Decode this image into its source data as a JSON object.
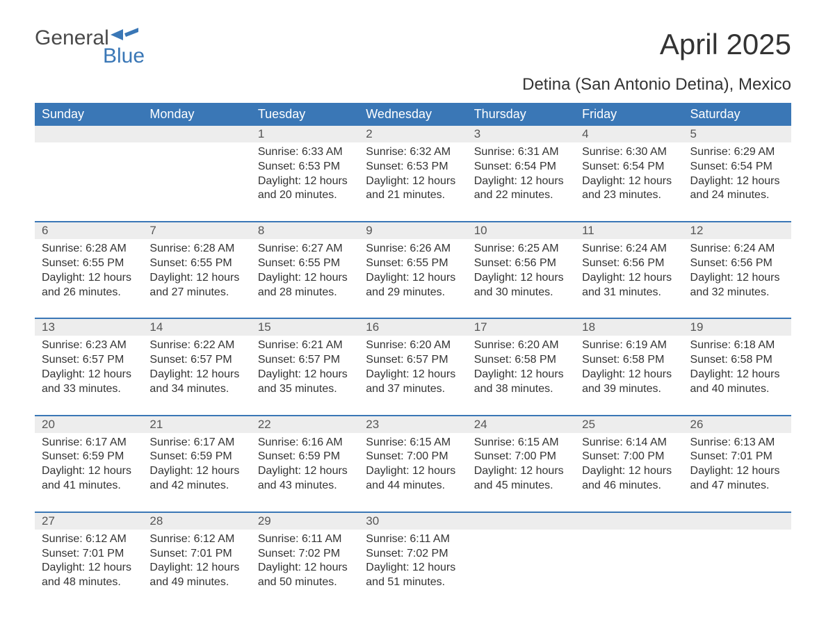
{
  "logo": {
    "word1": "General",
    "word2": "Blue"
  },
  "title": "April 2025",
  "location": "Detina (San Antonio Detina), Mexico",
  "colors": {
    "header_bg": "#3a77b6",
    "header_text": "#ffffff",
    "daynum_bg": "#ededed",
    "rule": "#3a77b6",
    "text": "#333333",
    "logo_gray": "#4a4a4a",
    "logo_blue": "#3a77b6",
    "background": "#ffffff"
  },
  "fonts": {
    "title_size_pt": 32,
    "location_size_pt": 18,
    "header_size_pt": 14,
    "body_size_pt": 12,
    "daynum_size_pt": 13
  },
  "day_headers": [
    "Sunday",
    "Monday",
    "Tuesday",
    "Wednesday",
    "Thursday",
    "Friday",
    "Saturday"
  ],
  "weeks": [
    [
      null,
      null,
      {
        "n": "1",
        "sunrise": "6:33 AM",
        "sunset": "6:53 PM",
        "daylight": "12 hours and 20 minutes."
      },
      {
        "n": "2",
        "sunrise": "6:32 AM",
        "sunset": "6:53 PM",
        "daylight": "12 hours and 21 minutes."
      },
      {
        "n": "3",
        "sunrise": "6:31 AM",
        "sunset": "6:54 PM",
        "daylight": "12 hours and 22 minutes."
      },
      {
        "n": "4",
        "sunrise": "6:30 AM",
        "sunset": "6:54 PM",
        "daylight": "12 hours and 23 minutes."
      },
      {
        "n": "5",
        "sunrise": "6:29 AM",
        "sunset": "6:54 PM",
        "daylight": "12 hours and 24 minutes."
      }
    ],
    [
      {
        "n": "6",
        "sunrise": "6:28 AM",
        "sunset": "6:55 PM",
        "daylight": "12 hours and 26 minutes."
      },
      {
        "n": "7",
        "sunrise": "6:28 AM",
        "sunset": "6:55 PM",
        "daylight": "12 hours and 27 minutes."
      },
      {
        "n": "8",
        "sunrise": "6:27 AM",
        "sunset": "6:55 PM",
        "daylight": "12 hours and 28 minutes."
      },
      {
        "n": "9",
        "sunrise": "6:26 AM",
        "sunset": "6:55 PM",
        "daylight": "12 hours and 29 minutes."
      },
      {
        "n": "10",
        "sunrise": "6:25 AM",
        "sunset": "6:56 PM",
        "daylight": "12 hours and 30 minutes."
      },
      {
        "n": "11",
        "sunrise": "6:24 AM",
        "sunset": "6:56 PM",
        "daylight": "12 hours and 31 minutes."
      },
      {
        "n": "12",
        "sunrise": "6:24 AM",
        "sunset": "6:56 PM",
        "daylight": "12 hours and 32 minutes."
      }
    ],
    [
      {
        "n": "13",
        "sunrise": "6:23 AM",
        "sunset": "6:57 PM",
        "daylight": "12 hours and 33 minutes."
      },
      {
        "n": "14",
        "sunrise": "6:22 AM",
        "sunset": "6:57 PM",
        "daylight": "12 hours and 34 minutes."
      },
      {
        "n": "15",
        "sunrise": "6:21 AM",
        "sunset": "6:57 PM",
        "daylight": "12 hours and 35 minutes."
      },
      {
        "n": "16",
        "sunrise": "6:20 AM",
        "sunset": "6:57 PM",
        "daylight": "12 hours and 37 minutes."
      },
      {
        "n": "17",
        "sunrise": "6:20 AM",
        "sunset": "6:58 PM",
        "daylight": "12 hours and 38 minutes."
      },
      {
        "n": "18",
        "sunrise": "6:19 AM",
        "sunset": "6:58 PM",
        "daylight": "12 hours and 39 minutes."
      },
      {
        "n": "19",
        "sunrise": "6:18 AM",
        "sunset": "6:58 PM",
        "daylight": "12 hours and 40 minutes."
      }
    ],
    [
      {
        "n": "20",
        "sunrise": "6:17 AM",
        "sunset": "6:59 PM",
        "daylight": "12 hours and 41 minutes."
      },
      {
        "n": "21",
        "sunrise": "6:17 AM",
        "sunset": "6:59 PM",
        "daylight": "12 hours and 42 minutes."
      },
      {
        "n": "22",
        "sunrise": "6:16 AM",
        "sunset": "6:59 PM",
        "daylight": "12 hours and 43 minutes."
      },
      {
        "n": "23",
        "sunrise": "6:15 AM",
        "sunset": "7:00 PM",
        "daylight": "12 hours and 44 minutes."
      },
      {
        "n": "24",
        "sunrise": "6:15 AM",
        "sunset": "7:00 PM",
        "daylight": "12 hours and 45 minutes."
      },
      {
        "n": "25",
        "sunrise": "6:14 AM",
        "sunset": "7:00 PM",
        "daylight": "12 hours and 46 minutes."
      },
      {
        "n": "26",
        "sunrise": "6:13 AM",
        "sunset": "7:01 PM",
        "daylight": "12 hours and 47 minutes."
      }
    ],
    [
      {
        "n": "27",
        "sunrise": "6:12 AM",
        "sunset": "7:01 PM",
        "daylight": "12 hours and 48 minutes."
      },
      {
        "n": "28",
        "sunrise": "6:12 AM",
        "sunset": "7:01 PM",
        "daylight": "12 hours and 49 minutes."
      },
      {
        "n": "29",
        "sunrise": "6:11 AM",
        "sunset": "7:02 PM",
        "daylight": "12 hours and 50 minutes."
      },
      {
        "n": "30",
        "sunrise": "6:11 AM",
        "sunset": "7:02 PM",
        "daylight": "12 hours and 51 minutes."
      },
      null,
      null,
      null
    ]
  ],
  "labels": {
    "sunrise_prefix": "Sunrise: ",
    "sunset_prefix": "Sunset: ",
    "daylight_prefix": "Daylight: "
  }
}
